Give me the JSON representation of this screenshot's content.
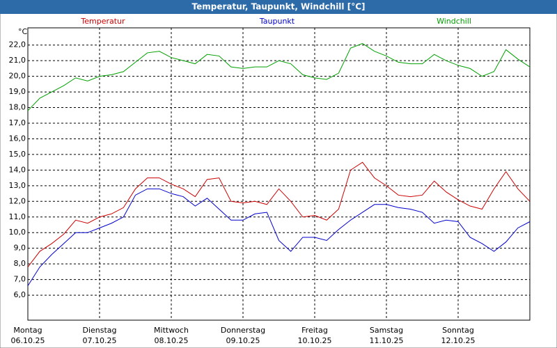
{
  "chart_data": {
    "type": "line",
    "title": "Temperatur, Taupunkt, Windchill [°C]",
    "y_unit": "°C",
    "x": [
      0,
      4,
      8,
      12,
      16,
      20,
      24,
      28,
      32,
      36,
      40,
      44,
      48,
      52,
      56,
      60,
      64,
      68,
      72,
      76,
      80,
      84,
      88,
      92,
      96,
      100,
      104,
      108,
      112,
      116,
      120,
      124,
      128,
      132,
      136,
      140,
      144,
      148,
      152,
      156,
      160,
      164,
      168
    ],
    "xlim": [
      0,
      168
    ],
    "xticks": [
      {
        "value": 0,
        "label": "Montag"
      },
      {
        "value": 24,
        "label": "Dienstag"
      },
      {
        "value": 48,
        "label": "Mittwoch"
      },
      {
        "value": 72,
        "label": "Donnerstag"
      },
      {
        "value": 96,
        "label": "Freitag"
      },
      {
        "value": 120,
        "label": "Samstag"
      },
      {
        "value": 144,
        "label": "Sonntag"
      }
    ],
    "xtick_dates": [
      "06.10.25",
      "07.10.25",
      "08.10.25",
      "09.10.25",
      "10.10.25",
      "11.10.25",
      "12.10.25"
    ],
    "ylim": [
      4.4,
      23.1
    ],
    "yticks": [
      {
        "value": 6,
        "label": "6,0"
      },
      {
        "value": 7,
        "label": "7,0"
      },
      {
        "value": 8,
        "label": "8,0"
      },
      {
        "value": 9,
        "label": "9,0"
      },
      {
        "value": 10,
        "label": "10,0"
      },
      {
        "value": 11,
        "label": "11,0"
      },
      {
        "value": 12,
        "label": "12,0"
      },
      {
        "value": 13,
        "label": "13,0"
      },
      {
        "value": 14,
        "label": "14,0"
      },
      {
        "value": 15,
        "label": "15,0"
      },
      {
        "value": 16,
        "label": "16,0"
      },
      {
        "value": 17,
        "label": "17,0"
      },
      {
        "value": 18,
        "label": "18,0"
      },
      {
        "value": 19,
        "label": "19,0"
      },
      {
        "value": 20,
        "label": "20,0"
      },
      {
        "value": 21,
        "label": "21,0"
      },
      {
        "value": 22,
        "label": "22,0"
      }
    ],
    "grid": true,
    "series": [
      {
        "name": "Temperatur",
        "color": "#cc0000",
        "values": [
          7.8,
          8.8,
          9.3,
          9.9,
          10.8,
          10.6,
          11.0,
          11.2,
          11.6,
          12.8,
          13.5,
          13.5,
          13.1,
          12.8,
          12.3,
          13.4,
          13.5,
          12.0,
          11.9,
          12.0,
          11.8,
          12.8,
          12.0,
          11.0,
          11.1,
          10.8,
          11.5,
          14.0,
          14.5,
          13.5,
          13.0,
          12.4,
          12.3,
          12.4,
          13.3,
          12.6,
          12.1,
          11.7,
          11.5,
          12.8,
          13.9,
          12.8,
          12.0
        ]
      },
      {
        "name": "Taupunkt",
        "color": "#0000cc",
        "values": [
          6.6,
          7.8,
          8.6,
          9.3,
          10.0,
          10.0,
          10.3,
          10.6,
          11.0,
          12.4,
          12.8,
          12.8,
          12.5,
          12.3,
          11.7,
          12.2,
          11.5,
          10.8,
          10.8,
          11.2,
          11.3,
          9.5,
          8.8,
          9.7,
          9.7,
          9.5,
          10.2,
          10.8,
          11.3,
          11.8,
          11.8,
          11.6,
          11.5,
          11.3,
          10.6,
          10.8,
          10.7,
          9.7,
          9.3,
          8.8,
          9.4,
          10.3,
          10.7
        ]
      },
      {
        "name": "Windchill",
        "color": "#00a000",
        "values": [
          17.8,
          18.6,
          19.0,
          19.4,
          19.9,
          19.7,
          20.0,
          20.1,
          20.3,
          20.9,
          21.5,
          21.6,
          21.2,
          21.0,
          20.8,
          21.4,
          21.3,
          20.6,
          20.5,
          20.6,
          20.6,
          21.0,
          20.8,
          20.1,
          19.9,
          19.8,
          20.2,
          21.8,
          22.1,
          21.6,
          21.3,
          20.9,
          20.8,
          20.8,
          21.4,
          21.0,
          20.7,
          20.5,
          20.0,
          20.3,
          21.7,
          21.1,
          20.6
        ]
      }
    ]
  }
}
